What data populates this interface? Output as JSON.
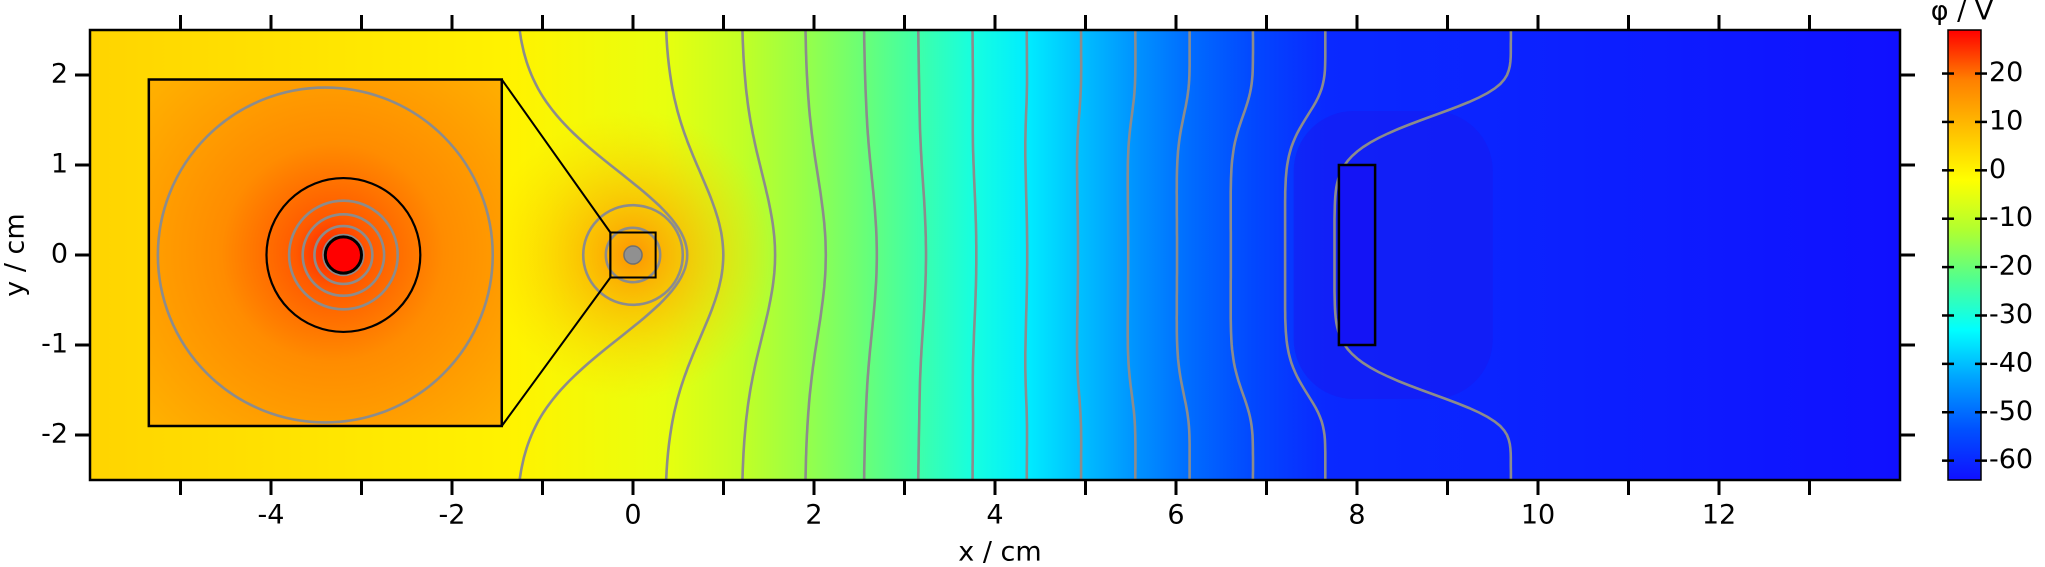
{
  "chart_data": {
    "type": "field",
    "xlabel": "x / cm",
    "ylabel": "y / cm",
    "xlim": [
      -6,
      14
    ],
    "ylim": [
      -2.5,
      2.5
    ],
    "xticks": [
      -4,
      -2,
      0,
      2,
      4,
      6,
      8,
      10,
      12
    ],
    "xminorticks": [
      -5,
      -3,
      -1,
      1,
      3,
      5,
      7,
      9,
      11,
      13
    ],
    "yticks": [
      -2,
      -1,
      0,
      1,
      2
    ],
    "contour_color": "#8c8c8c",
    "colorbar": {
      "label": "φ / V",
      "clim": [
        -64,
        29
      ],
      "ticks": [
        -60,
        -50,
        -40,
        -30,
        -20,
        -10,
        0,
        10,
        20
      ],
      "colormap": [
        "#1010ff",
        "#0050ff",
        "#00a0ff",
        "#00ffff",
        "#50ff90",
        "#b0ff30",
        "#ffff00",
        "#ffc000",
        "#ff8000",
        "#ff0000"
      ]
    },
    "profile": {
      "x": [
        -6,
        -1.3,
        0.35,
        1.2,
        1.9,
        2.55,
        3.15,
        3.75,
        4.35,
        4.95,
        5.55,
        6.15,
        6.85,
        7.65,
        9.7,
        14
      ],
      "values": [
        5,
        0,
        -5,
        -10,
        -15,
        -20,
        -25,
        -30,
        -35,
        -40,
        -45,
        -50,
        -55,
        -60,
        -61,
        -64
      ]
    }
  }
}
